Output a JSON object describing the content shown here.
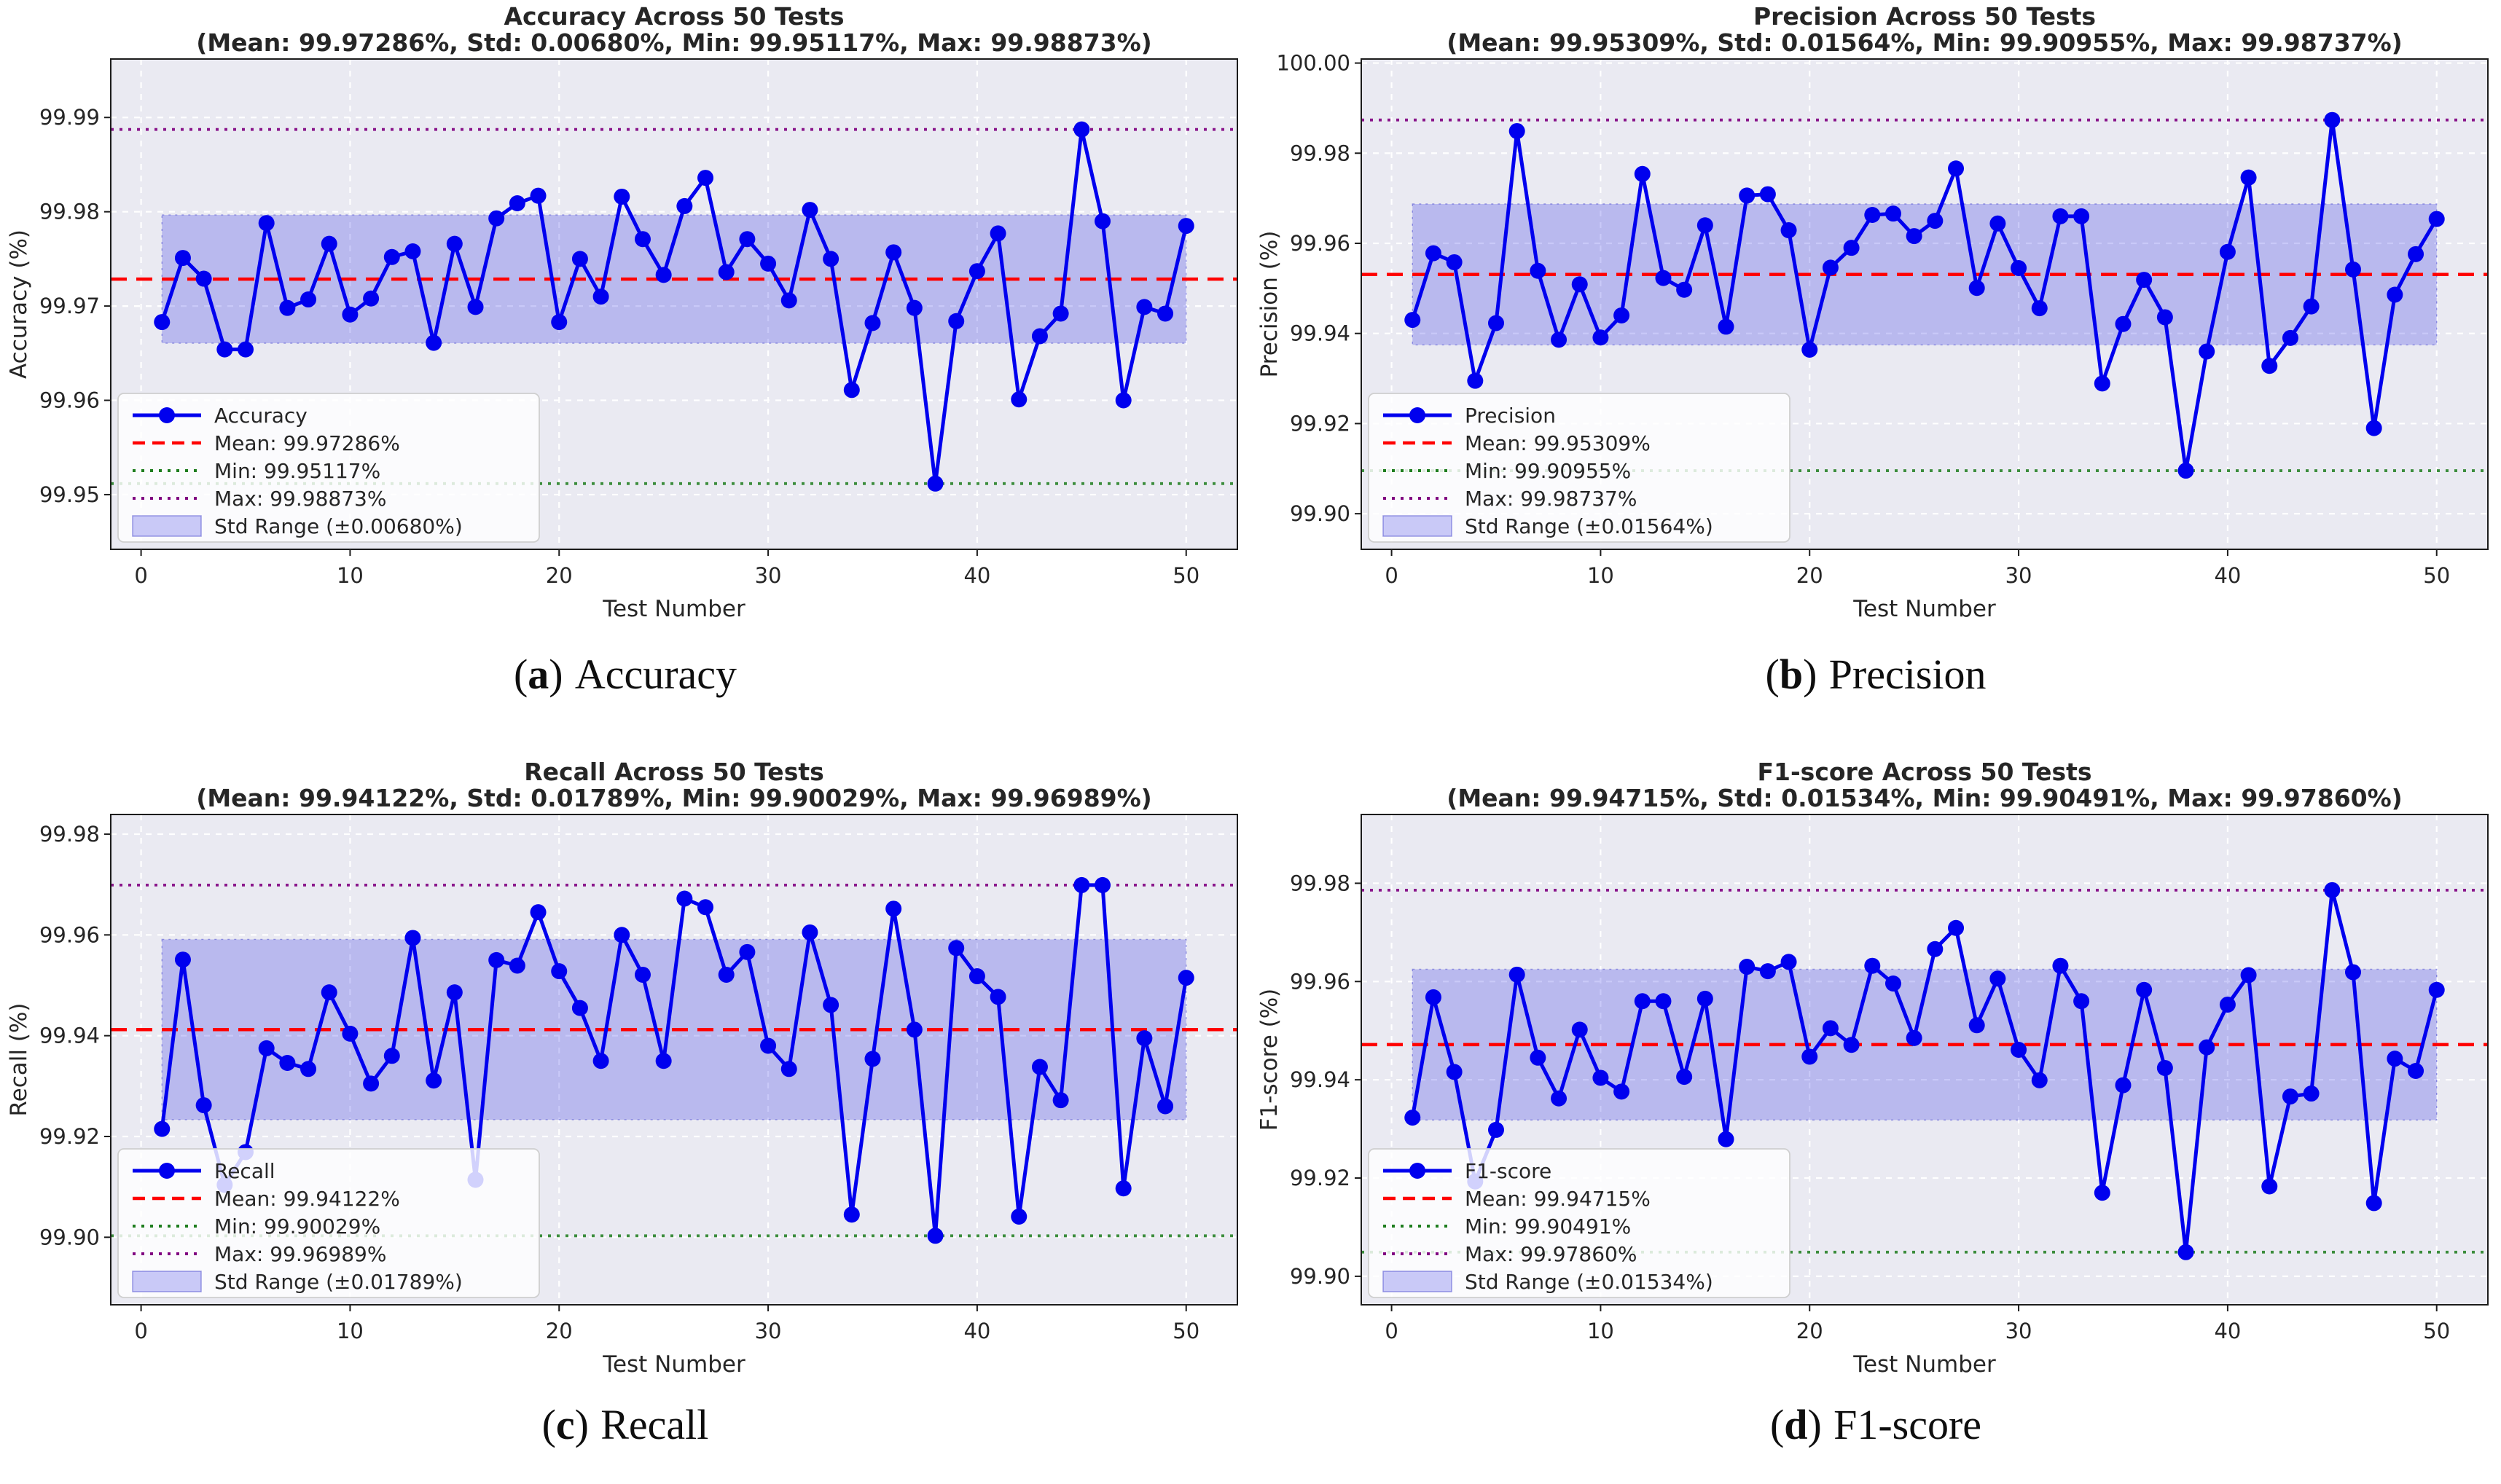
{
  "figure": {
    "background": "#ffffff",
    "xlabel": "Test Number",
    "xticks": [
      0,
      10,
      20,
      30,
      40,
      50
    ],
    "xtick_labels": [
      "0",
      "10",
      "20",
      "30",
      "40",
      "50"
    ],
    "xlim": [
      -1.45,
      52.45
    ]
  },
  "colors": {
    "plot_bg": "#eaeaf2",
    "grid": "#ffffff",
    "spine": "#1c1c1c",
    "line": "#0000ee",
    "mean": "#ff0000",
    "min": "#1e7d1e",
    "max": "#800080",
    "band": "rgba(55,55,230,0.27)",
    "band_edge": "rgba(80,80,210,0.55)",
    "legend_swatch": "#c9c9f7",
    "legend_border": "#cfcfcf",
    "text": "#262626"
  },
  "chart_data": [
    {
      "key": "a",
      "type": "line",
      "title_line1": "Accuracy Across 50 Tests",
      "title_line2": "(Mean: 99.97286%, Std: 0.00680%, Min: 99.95117%, Max: 99.98873%)",
      "ylabel": "Accuracy (%)",
      "xlabel": "Test Number",
      "series_label": "Accuracy",
      "caption": {
        "open": "(",
        "letter": "a",
        "close": ")",
        "label": "Accuracy"
      },
      "stats": {
        "mean": 99.97286,
        "std": 0.0068,
        "min": 99.95117,
        "max": 99.98873
      },
      "legend": [
        "Accuracy",
        "Mean: 99.97286%",
        "Min: 99.95117%",
        "Max: 99.98873%",
        "Std Range (±0.00680%)"
      ],
      "ylim": [
        99.9442,
        99.9962
      ],
      "yticks": [
        99.95,
        99.96,
        99.97,
        99.98,
        99.99
      ],
      "ytick_labels": [
        "99.95",
        "99.96",
        "99.97",
        "99.98",
        "99.99"
      ],
      "x": [
        1,
        2,
        3,
        4,
        5,
        6,
        7,
        8,
        9,
        10,
        11,
        12,
        13,
        14,
        15,
        16,
        17,
        18,
        19,
        20,
        21,
        22,
        23,
        24,
        25,
        26,
        27,
        28,
        29,
        30,
        31,
        32,
        33,
        34,
        35,
        36,
        37,
        38,
        39,
        40,
        41,
        42,
        43,
        44,
        45,
        46,
        47,
        48,
        49,
        50
      ],
      "values": [
        99.9683,
        99.9751,
        99.9729,
        99.9654,
        99.9654,
        99.9788,
        99.9698,
        99.9707,
        99.9766,
        99.9691,
        99.9708,
        99.9752,
        99.9758,
        99.9661,
        99.9766,
        99.9699,
        99.9793,
        99.9809,
        99.9817,
        99.9683,
        99.975,
        99.971,
        99.9816,
        99.9771,
        99.9733,
        99.9806,
        99.9836,
        99.9736,
        99.9771,
        99.9745,
        99.9706,
        99.9802,
        99.975,
        99.9611,
        99.9682,
        99.9757,
        99.9698,
        99.95117,
        99.9684,
        99.9737,
        99.9777,
        99.9601,
        99.9668,
        99.9692,
        99.98873,
        99.979,
        99.96,
        99.9699,
        99.9692,
        99.9785
      ]
    },
    {
      "key": "b",
      "type": "line",
      "title_line1": "Precision Across 50 Tests",
      "title_line2": "(Mean: 99.95309%, Std: 0.01564%, Min: 99.90955%, Max: 99.98737%)",
      "ylabel": "Precision (%)",
      "xlabel": "Test Number",
      "series_label": "Precision",
      "caption": {
        "open": "(",
        "letter": "b",
        "close": ")",
        "label": "Precision"
      },
      "stats": {
        "mean": 99.95309,
        "std": 0.01564,
        "min": 99.90955,
        "max": 99.98737
      },
      "legend": [
        "Precision",
        "Mean: 99.95309%",
        "Min: 99.90955%",
        "Max: 99.98737%",
        "Std Range (±0.01564%)"
      ],
      "ylim": [
        99.8921,
        100.0009
      ],
      "yticks": [
        99.9,
        99.92,
        99.94,
        99.96,
        99.98,
        100.0
      ],
      "ytick_labels": [
        "99.90",
        "99.92",
        "99.94",
        "99.96",
        "99.98",
        "100.00"
      ],
      "x": [
        1,
        2,
        3,
        4,
        5,
        6,
        7,
        8,
        9,
        10,
        11,
        12,
        13,
        14,
        15,
        16,
        17,
        18,
        19,
        20,
        21,
        22,
        23,
        24,
        25,
        26,
        27,
        28,
        29,
        30,
        31,
        32,
        33,
        34,
        35,
        36,
        37,
        38,
        39,
        40,
        41,
        42,
        43,
        44,
        45,
        46,
        47,
        48,
        49,
        50
      ],
      "values": [
        99.943,
        99.9578,
        99.9558,
        99.9295,
        99.9423,
        99.9849,
        99.9539,
        99.9386,
        99.9509,
        99.9391,
        99.944,
        99.9754,
        99.9523,
        99.9497,
        99.964,
        99.9415,
        99.9706,
        99.9709,
        99.9629,
        99.9364,
        99.9546,
        99.959,
        99.9663,
        99.9666,
        99.9616,
        99.965,
        99.9766,
        99.9501,
        99.9644,
        99.9545,
        99.9456,
        99.966,
        99.966,
        99.9289,
        99.9421,
        99.9519,
        99.9436,
        99.90955,
        99.936,
        99.9581,
        99.9746,
        99.9328,
        99.939,
        99.946,
        99.98737,
        99.9542,
        99.919,
        99.9486,
        99.9576,
        99.9654
      ]
    },
    {
      "key": "c",
      "type": "line",
      "title_line1": "Recall Across 50 Tests",
      "title_line2": "(Mean: 99.94122%, Std: 0.01789%, Min: 99.90029%, Max: 99.96989%)",
      "ylabel": "Recall (%)",
      "xlabel": "Test Number",
      "series_label": "Recall",
      "caption": {
        "open": "(",
        "letter": "c",
        "close": ")",
        "label": "Recall"
      },
      "stats": {
        "mean": 99.94122,
        "std": 0.01789,
        "min": 99.90029,
        "max": 99.96989
      },
      "legend": [
        "Recall",
        "Mean: 99.94122%",
        "Min: 99.90029%",
        "Max: 99.96989%",
        "Std Range (±0.01789%)"
      ],
      "ylim": [
        99.8866,
        99.9839
      ],
      "yticks": [
        99.9,
        99.92,
        99.94,
        99.96,
        99.98
      ],
      "ytick_labels": [
        "99.90",
        "99.92",
        "99.94",
        "99.96",
        "99.98"
      ],
      "x": [
        1,
        2,
        3,
        4,
        5,
        6,
        7,
        8,
        9,
        10,
        11,
        12,
        13,
        14,
        15,
        16,
        17,
        18,
        19,
        20,
        21,
        22,
        23,
        24,
        25,
        26,
        27,
        28,
        29,
        30,
        31,
        32,
        33,
        34,
        35,
        36,
        37,
        38,
        39,
        40,
        41,
        42,
        43,
        44,
        45,
        46,
        47,
        48,
        49,
        50
      ],
      "values": [
        99.9215,
        99.9551,
        99.9262,
        99.9104,
        99.9169,
        99.9375,
        99.9346,
        99.9334,
        99.9486,
        99.9404,
        99.9305,
        99.936,
        99.9594,
        99.9311,
        99.9486,
        99.9114,
        99.955,
        99.9539,
        99.9645,
        99.9528,
        99.9455,
        99.935,
        99.96,
        99.9521,
        99.935,
        99.9672,
        99.9655,
        99.9521,
        99.9566,
        99.938,
        99.9334,
        99.9605,
        99.9461,
        99.9045,
        99.9354,
        99.9652,
        99.9412,
        99.90029,
        99.9574,
        99.9518,
        99.9477,
        99.9041,
        99.9338,
        99.9272,
        99.96989,
        99.96989,
        99.9097,
        99.9395,
        99.926,
        99.9515
      ]
    },
    {
      "key": "d",
      "type": "line",
      "title_line1": "F1-score Across 50 Tests",
      "title_line2": "(Mean: 99.94715%, Std: 0.01534%, Min: 99.90491%, Max: 99.97860%)",
      "ylabel": "F1-score (%)",
      "xlabel": "Test Number",
      "series_label": "F1-score",
      "caption": {
        "open": "(",
        "letter": "d",
        "close": ")",
        "label": "F1-score"
      },
      "stats": {
        "mean": 99.94715,
        "std": 0.01534,
        "min": 99.90491,
        "max": 99.9786
      },
      "legend": [
        "F1-score",
        "Mean: 99.94715%",
        "Min: 99.90491%",
        "Max: 99.97860%",
        "Std Range (±0.01534%)"
      ],
      "ylim": [
        99.8942,
        99.994
      ],
      "yticks": [
        99.9,
        99.92,
        99.94,
        99.96,
        99.98
      ],
      "ytick_labels": [
        "99.90",
        "99.92",
        "99.94",
        "99.96",
        "99.98"
      ],
      "x": [
        1,
        2,
        3,
        4,
        5,
        6,
        7,
        8,
        9,
        10,
        11,
        12,
        13,
        14,
        15,
        16,
        17,
        18,
        19,
        20,
        21,
        22,
        23,
        24,
        25,
        26,
        27,
        28,
        29,
        30,
        31,
        32,
        33,
        34,
        35,
        36,
        37,
        38,
        39,
        40,
        41,
        42,
        43,
        44,
        45,
        46,
        47,
        48,
        49,
        50
      ],
      "values": [
        99.9323,
        99.9568,
        99.9416,
        99.9193,
        99.9298,
        99.9614,
        99.9445,
        99.9362,
        99.9502,
        99.9404,
        99.9376,
        99.956,
        99.956,
        99.9406,
        99.9565,
        99.9279,
        99.963,
        99.9621,
        99.964,
        99.9447,
        99.9505,
        99.9471,
        99.9632,
        99.9596,
        99.9485,
        99.9666,
        99.9709,
        99.9511,
        99.9606,
        99.9461,
        99.9399,
        99.9632,
        99.956,
        99.917,
        99.9389,
        99.9583,
        99.9424,
        99.90491,
        99.9466,
        99.9553,
        99.9613,
        99.9183,
        99.9366,
        99.9372,
        99.9786,
        99.9619,
        99.9149,
        99.9443,
        99.9418,
        99.9583
      ]
    }
  ]
}
